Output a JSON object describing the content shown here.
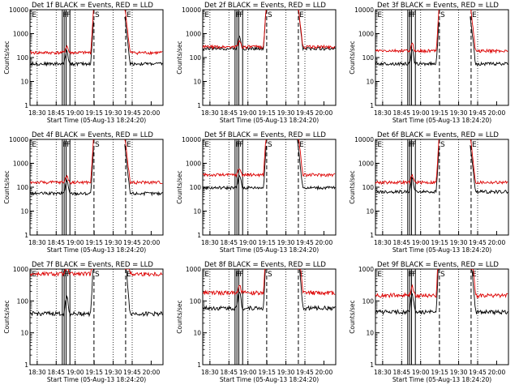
{
  "figure": {
    "ylabel": "Counts/sec",
    "xlabel": "Start Time (05-Aug-13 18:24:20)",
    "x_tick_labels": [
      "18:30",
      "18:45",
      "19:00",
      "19:15",
      "19:30",
      "19:45",
      "20:00"
    ],
    "y_tick_labels": [
      "1",
      "10",
      "100",
      "1000",
      "10000"
    ],
    "colors": {
      "events": "#000000",
      "lld": "#dd0000",
      "axes": "#000000"
    },
    "series_names": {
      "events": "Events",
      "lld": "LLD"
    }
  },
  "chart_data": [
    {
      "type": "line",
      "panel": 1,
      "title": "Det 1f  BLACK = Events, RED = LLD",
      "ylim": [
        1,
        10000
      ],
      "yscale": "log",
      "x_range_min": [
        0,
        105
      ],
      "series": [
        {
          "name": "Events",
          "base": 55
        },
        {
          "name": "LLD",
          "base": 160
        }
      ],
      "event_lines_min": [
        25.5,
        27,
        28.5,
        31.5
      ],
      "markers": [
        "E",
        "F",
        "F",
        "F",
        "S",
        "E"
      ]
    },
    {
      "type": "line",
      "panel": 2,
      "title": "Det 2f  BLACK = Events, RED = LLD",
      "ylim": [
        1,
        10000
      ],
      "yscale": "log",
      "x_range_min": [
        0,
        105
      ],
      "series": [
        {
          "name": "Events",
          "base": 240
        },
        {
          "name": "LLD",
          "base": 280
        }
      ],
      "event_lines_min": [
        25.5,
        27,
        28.5,
        31.5
      ],
      "markers": [
        "E",
        "F",
        "F",
        "F",
        "S",
        "E"
      ]
    },
    {
      "type": "line",
      "panel": 3,
      "title": "Det 3f  BLACK = Events, RED = LLD",
      "ylim": [
        1,
        10000
      ],
      "yscale": "log",
      "x_range_min": [
        0,
        105
      ],
      "series": [
        {
          "name": "Events",
          "base": 55
        },
        {
          "name": "LLD",
          "base": 190
        }
      ],
      "event_lines_min": [
        25.5,
        27,
        28.5,
        31.5
      ],
      "markers": [
        "E",
        "F",
        "F",
        "F",
        "S",
        "E"
      ]
    },
    {
      "type": "line",
      "panel": 4,
      "title": "Det 4f  BLACK = Events, RED = LLD",
      "ylim": [
        1,
        10000
      ],
      "yscale": "log",
      "x_range_min": [
        0,
        105
      ],
      "series": [
        {
          "name": "Events",
          "base": 55
        },
        {
          "name": "LLD",
          "base": 160
        }
      ],
      "event_lines_min": [
        25.5,
        27,
        28.5,
        31.5
      ],
      "markers": [
        "E",
        "F",
        "F",
        "F",
        "S",
        "E"
      ]
    },
    {
      "type": "line",
      "panel": 5,
      "title": "Det 5f  BLACK = Events, RED = LLD",
      "ylim": [
        1,
        10000
      ],
      "yscale": "log",
      "x_range_min": [
        0,
        105
      ],
      "series": [
        {
          "name": "Events",
          "base": 95
        },
        {
          "name": "LLD",
          "base": 330
        }
      ],
      "event_lines_min": [
        25.5,
        27,
        28.5,
        31.5
      ],
      "markers": [
        "E",
        "F",
        "F",
        "F",
        "S",
        "E"
      ]
    },
    {
      "type": "line",
      "panel": 6,
      "title": "Det 6f  BLACK = Events, RED = LLD",
      "ylim": [
        1,
        10000
      ],
      "yscale": "log",
      "x_range_min": [
        0,
        105
      ],
      "series": [
        {
          "name": "Events",
          "base": 65
        },
        {
          "name": "LLD",
          "base": 160
        }
      ],
      "event_lines_min": [
        25.5,
        27,
        28.5,
        31.5
      ],
      "markers": [
        "E",
        "F",
        "F",
        "F",
        "S",
        "E"
      ]
    },
    {
      "type": "line",
      "panel": 7,
      "title": "Det 7f  BLACK = Events, RED = LLD",
      "ylim": [
        1,
        1000
      ],
      "yscale": "log",
      "x_range_min": [
        0,
        105
      ],
      "series": [
        {
          "name": "Events",
          "base": 40
        },
        {
          "name": "LLD",
          "base": 700
        }
      ],
      "event_lines_min": [
        25.5,
        27,
        28.5,
        31.5
      ],
      "markers": [
        "E",
        "F",
        "F",
        "F",
        "S",
        "E"
      ]
    },
    {
      "type": "line",
      "panel": 8,
      "title": "Det 8f  BLACK = Events, RED = LLD",
      "ylim": [
        1,
        1000
      ],
      "yscale": "log",
      "x_range_min": [
        0,
        105
      ],
      "series": [
        {
          "name": "Events",
          "base": 60
        },
        {
          "name": "LLD",
          "base": 180
        }
      ],
      "event_lines_min": [
        25.5,
        27,
        28.5,
        31.5
      ],
      "markers": [
        "E",
        "F",
        "F",
        "F",
        "S",
        "E"
      ]
    },
    {
      "type": "line",
      "panel": 9,
      "title": "Det 9f  BLACK = Events, RED = LLD",
      "ylim": [
        1,
        1000
      ],
      "yscale": "log",
      "x_range_min": [
        0,
        105
      ],
      "series": [
        {
          "name": "Events",
          "base": 45
        },
        {
          "name": "LLD",
          "base": 150
        }
      ],
      "event_lines_min": [
        25.5,
        27,
        28.5,
        31.5
      ],
      "markers": [
        "E",
        "F",
        "F",
        "F",
        "S",
        "E"
      ]
    }
  ]
}
